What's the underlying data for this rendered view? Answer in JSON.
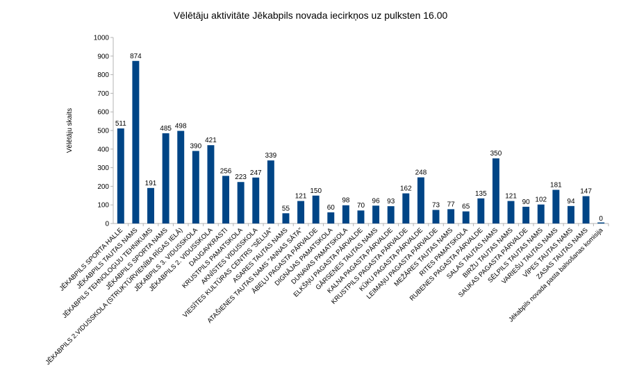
{
  "chart_data": {
    "type": "bar",
    "title": "Vēlētāju aktivitāte Jēkabpils novada iecirkņos uz pulksten 16.00",
    "ylabel": "Vēlētāju skaits",
    "xlabel": "",
    "ylim": [
      0,
      1000
    ],
    "yticks": [
      0,
      100,
      200,
      300,
      400,
      500,
      600,
      700,
      800,
      900,
      1000
    ],
    "grid": false,
    "legend": "none",
    "bar_color": "#004586",
    "categories": [
      "JĒKABPILS SPORTA HALLE",
      "JĒKABPILS TAUTAS NAMS",
      "JĒKABPILS TEHNOLOĢIJU TEHNIKUMS",
      "JĒKABPILS SPORTA NAMS",
      "JĒKABPILS 2.VIDUSSKOLA (STRUKTŪRVIENĪBA RĪGAS IELĀ)",
      "JĒKABPILS 3. VIDUSSKOLA",
      "JĒKABPILS 2. VIDUSSKOLA",
      "DAUGAVKRASTI",
      "KRUSTPILS PAMATSKOLA",
      "AKNĪSTES VIDUSSKOLA",
      "VIESĪTES KULTŪRAS CENTRS \"SĒLIJA\"",
      "ASARES TAUTAS NAMS",
      "ATAŠIENES TAUTAS NAMS \"ANNAS SĀTA\"",
      "ĀBEĻU PAGASTA PĀRVALDE",
      "DIGNĀJAS PAMATSKOLA",
      "DUNAVAS PAMATSKOLA",
      "ELKŠŅU PAGASTA PĀRVALDE",
      "GĀRSENES TAUTAS NAMS",
      "KALNA PAGASTA PĀRVALDE",
      "KRUSTPILS PAGASTA PĀRVALDE",
      "KŪKU PAGASTA PĀRVALDE",
      "LEIMAŅU PAGASTA PĀRVALDE",
      "MEŽĀRES TAUTAS NAMS",
      "RITES PAMATSKOLA",
      "RUBENES PAGASTA PĀRVALDE",
      "SALAS TAUTAS NAMS",
      "BIRŽU TAUTAS NAMS",
      "SAUKAS PAGASTA PĀRVALDE",
      "SĒLPILS TAUTAS NAMS",
      "VARIEŠU TAUTAS NAMS",
      "VĪPES TAUTAS NAMS",
      "ZASAS TAUTAS NAMS",
      "Jēkabpils novada pasta balsošanas komisija"
    ],
    "values": [
      511,
      874,
      191,
      485,
      498,
      390,
      421,
      256,
      223,
      247,
      339,
      55,
      121,
      150,
      60,
      98,
      70,
      96,
      93,
      162,
      248,
      73,
      77,
      65,
      135,
      350,
      121,
      90,
      102,
      181,
      94,
      147,
      0
    ]
  }
}
